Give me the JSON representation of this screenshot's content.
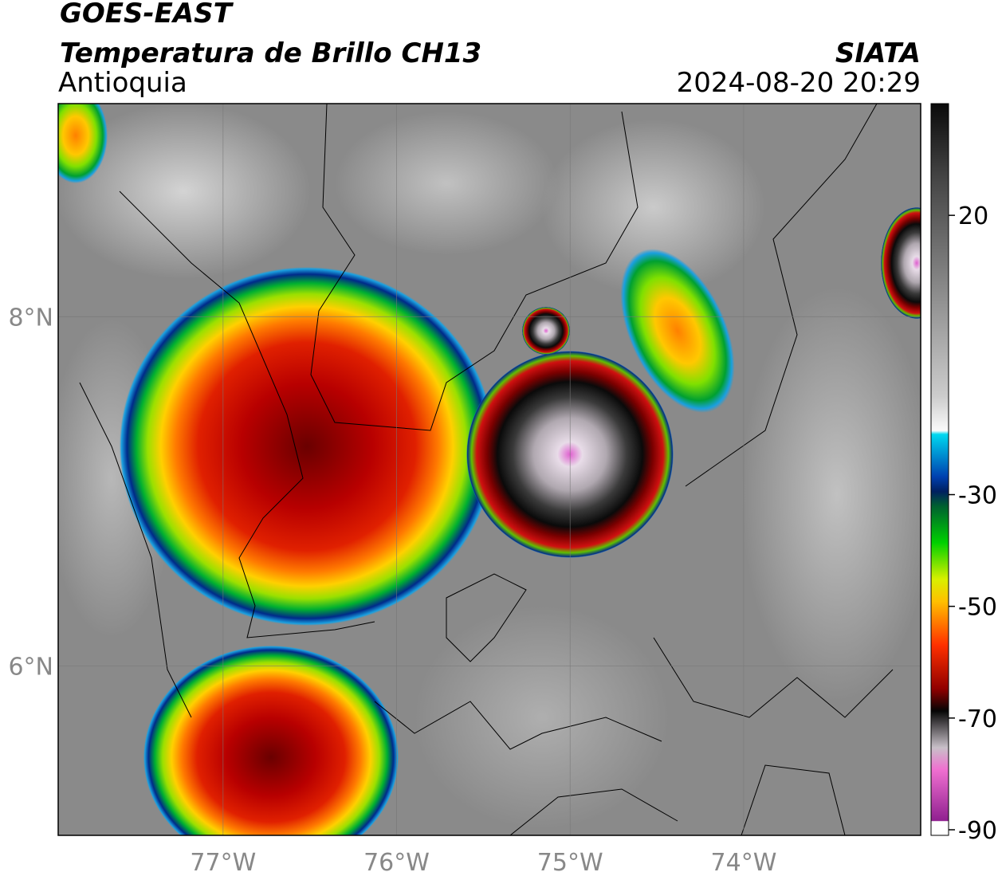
{
  "header": {
    "title": "GOES-EAST",
    "subtitle": "Temperatura de Brillo CH13",
    "region": "Antioquia",
    "source": "SIATA",
    "datetime": "2024-08-20 20:29"
  },
  "map": {
    "xlim": [
      -77.95,
      -72.98
    ],
    "ylim": [
      5.03,
      9.22
    ],
    "xticks": [
      {
        "value": -77,
        "label": "77°W"
      },
      {
        "value": -76,
        "label": "76°W"
      },
      {
        "value": -75,
        "label": "75°W"
      },
      {
        "value": -74,
        "label": "74°W"
      }
    ],
    "yticks": [
      {
        "value": 6,
        "label": "6°N"
      },
      {
        "value": 8,
        "label": "8°N"
      }
    ]
  },
  "colorbar": {
    "lim": [
      -91,
      40
    ],
    "ticks": [
      20,
      -30,
      -50,
      -70,
      -90
    ]
  }
}
